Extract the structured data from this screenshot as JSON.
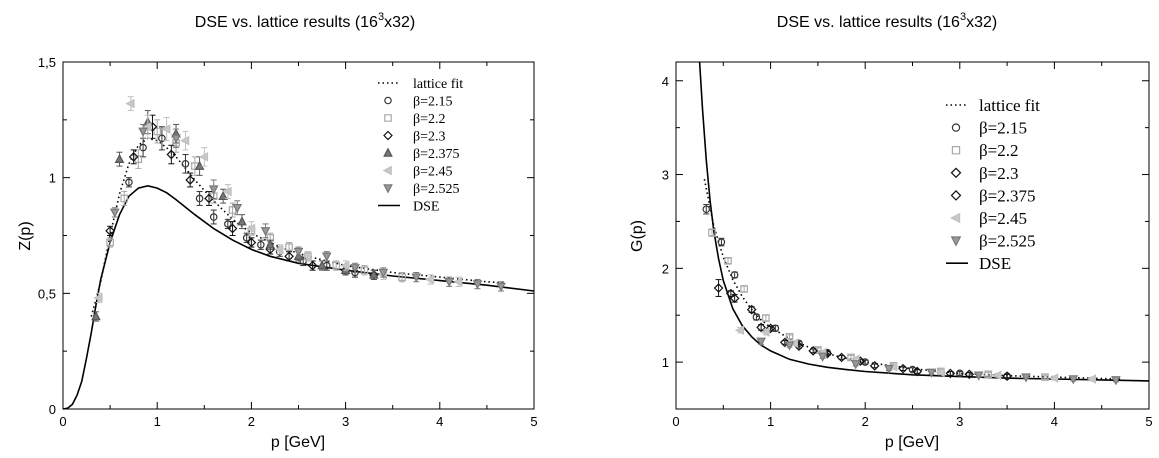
{
  "chart_data": [
    {
      "type": "scatter",
      "title": "DSE vs. lattice results (16",
      "title_sup": "3",
      "title_tail": "x32)",
      "xlabel": "p [GeV]",
      "ylabel": "Z(p)",
      "xlim": [
        0,
        5
      ],
      "ylim": [
        0,
        1.5
      ],
      "xticks": [
        {
          "v": 0,
          "label": "0"
        },
        {
          "v": 1,
          "label": "1"
        },
        {
          "v": 2,
          "label": "2"
        },
        {
          "v": 3,
          "label": "3"
        },
        {
          "v": 4,
          "label": "4"
        },
        {
          "v": 5,
          "label": "5"
        }
      ],
      "yticks": [
        {
          "v": 0,
          "label": "0"
        },
        {
          "v": 0.5,
          "label": "0,5"
        },
        {
          "v": 1,
          "label": "1"
        },
        {
          "v": 1.5,
          "label": "1,5"
        }
      ],
      "legend_position": "top-right",
      "legend": [
        {
          "label": "lattice fit",
          "kind": "dotted"
        },
        {
          "label": "β=2.15",
          "kind": "circle"
        },
        {
          "label": "β=2.2",
          "kind": "square"
        },
        {
          "label": "β=2.3",
          "kind": "diamond"
        },
        {
          "label": "β=2.375",
          "kind": "triangle-up"
        },
        {
          "label": "β=2.45",
          "kind": "triangle-left"
        },
        {
          "label": "β=2.525",
          "kind": "triangle-down"
        },
        {
          "label": "DSE",
          "kind": "solid"
        }
      ],
      "lattice_fit": {
        "x": [
          0.3,
          0.4,
          0.5,
          0.6,
          0.7,
          0.8,
          0.9,
          1.0,
          1.1,
          1.2,
          1.4,
          1.6,
          1.8,
          2.0,
          2.3,
          2.6,
          3.0,
          3.5,
          4.0,
          4.5,
          4.7
        ],
        "y": [
          0.4,
          0.55,
          0.75,
          0.93,
          1.06,
          1.14,
          1.17,
          1.16,
          1.13,
          1.09,
          0.99,
          0.9,
          0.82,
          0.76,
          0.7,
          0.66,
          0.62,
          0.59,
          0.57,
          0.55,
          0.545
        ]
      },
      "dse": {
        "x": [
          0.0,
          0.05,
          0.1,
          0.15,
          0.2,
          0.25,
          0.3,
          0.35,
          0.4,
          0.5,
          0.6,
          0.7,
          0.8,
          0.9,
          1.0,
          1.1,
          1.2,
          1.4,
          1.6,
          1.8,
          2.0,
          2.2,
          2.5,
          3.0,
          3.5,
          4.0,
          4.5,
          5.0
        ],
        "y": [
          0.0,
          0.004,
          0.02,
          0.06,
          0.12,
          0.22,
          0.33,
          0.45,
          0.56,
          0.72,
          0.84,
          0.92,
          0.955,
          0.965,
          0.955,
          0.935,
          0.905,
          0.84,
          0.78,
          0.73,
          0.69,
          0.66,
          0.63,
          0.6,
          0.575,
          0.555,
          0.535,
          0.51
        ]
      },
      "series": [
        {
          "marker": "circle",
          "x": [
            0.7,
            0.85,
            1.05,
            1.3,
            1.45,
            1.6,
            1.75,
            1.95,
            2.1,
            2.3,
            2.55,
            2.8,
            3.1
          ],
          "y": [
            0.98,
            1.13,
            1.17,
            1.06,
            0.91,
            0.83,
            0.8,
            0.74,
            0.71,
            0.68,
            0.64,
            0.62,
            0.59
          ],
          "err": [
            0.02,
            0.04,
            0.05,
            0.04,
            0.03,
            0.03,
            0.02,
            0.02,
            0.02,
            0.02,
            0.02,
            0.02,
            0.02
          ]
        },
        {
          "marker": "square",
          "x": [
            0.5,
            0.65,
            0.8,
            1.0,
            1.2,
            1.4,
            1.6,
            1.8,
            2.0,
            2.2,
            2.4,
            2.6,
            2.9,
            3.2,
            3.6
          ],
          "y": [
            0.72,
            0.91,
            1.08,
            1.2,
            1.15,
            1.05,
            0.92,
            0.86,
            0.77,
            0.74,
            0.7,
            0.66,
            0.62,
            0.6,
            0.57
          ],
          "err": [
            0.02,
            0.03,
            0.04,
            0.05,
            0.04,
            0.04,
            0.03,
            0.03,
            0.02,
            0.02,
            0.02,
            0.02,
            0.02,
            0.02,
            0.02
          ]
        },
        {
          "marker": "diamond",
          "x": [
            0.5,
            0.75,
            0.95,
            1.15,
            1.35,
            1.55,
            1.8,
            2.0,
            2.2,
            2.4,
            2.65,
            3.0,
            3.3
          ],
          "y": [
            0.77,
            1.09,
            1.22,
            1.1,
            0.99,
            0.91,
            0.78,
            0.72,
            0.69,
            0.66,
            0.62,
            0.6,
            0.58
          ],
          "err": [
            0.02,
            0.03,
            0.05,
            0.04,
            0.03,
            0.03,
            0.03,
            0.02,
            0.02,
            0.02,
            0.02,
            0.02,
            0.02
          ]
        },
        {
          "marker": "triangle-up",
          "x": [
            0.35,
            0.6,
            0.9,
            1.2,
            1.45,
            1.7,
            1.9,
            2.2,
            2.5,
            2.75,
            3.0,
            3.3
          ],
          "y": [
            0.4,
            1.08,
            1.24,
            1.19,
            1.05,
            0.92,
            0.81,
            0.71,
            0.66,
            0.62,
            0.6,
            0.58
          ],
          "err": [
            0.02,
            0.03,
            0.05,
            0.04,
            0.04,
            0.03,
            0.03,
            0.02,
            0.02,
            0.02,
            0.02,
            0.02
          ]
        },
        {
          "marker": "triangle-left",
          "x": [
            0.38,
            0.72,
            0.9,
            1.1,
            1.3,
            1.5,
            1.75,
            2.0,
            2.3,
            2.6,
            3.0,
            3.4,
            3.9,
            4.2
          ],
          "y": [
            0.48,
            1.32,
            1.22,
            1.21,
            1.16,
            1.09,
            0.94,
            0.78,
            0.69,
            0.66,
            0.62,
            0.58,
            0.56,
            0.55
          ],
          "err": [
            0.02,
            0.03,
            0.05,
            0.05,
            0.04,
            0.04,
            0.03,
            0.03,
            0.02,
            0.02,
            0.02,
            0.02,
            0.02,
            0.02
          ]
        },
        {
          "marker": "triangle-down",
          "x": [
            0.55,
            0.85,
            1.2,
            1.6,
            1.85,
            2.15,
            2.5,
            2.8,
            3.1,
            3.4,
            3.75,
            4.1,
            4.4,
            4.65
          ],
          "y": [
            0.85,
            1.2,
            1.17,
            0.95,
            0.87,
            0.77,
            0.68,
            0.66,
            0.61,
            0.59,
            0.57,
            0.55,
            0.54,
            0.53
          ],
          "err": [
            0.02,
            0.03,
            0.04,
            0.04,
            0.03,
            0.03,
            0.02,
            0.02,
            0.02,
            0.02,
            0.02,
            0.02,
            0.02,
            0.02
          ]
        }
      ]
    },
    {
      "type": "scatter",
      "title": "DSE vs. lattice results (16",
      "title_sup": "3",
      "title_tail": "x32)",
      "xlabel": "p [GeV]",
      "ylabel": "G(p)",
      "xlim": [
        0,
        5
      ],
      "ylim": [
        0.5,
        4.2
      ],
      "xticks": [
        {
          "v": 0,
          "label": "0"
        },
        {
          "v": 1,
          "label": "1"
        },
        {
          "v": 2,
          "label": "2"
        },
        {
          "v": 3,
          "label": "3"
        },
        {
          "v": 4,
          "label": "4"
        },
        {
          "v": 5,
          "label": "5"
        }
      ],
      "yticks": [
        {
          "v": 1,
          "label": "1"
        },
        {
          "v": 2,
          "label": "2"
        },
        {
          "v": 3,
          "label": "3"
        },
        {
          "v": 4,
          "label": "4"
        }
      ],
      "legend_position": "right",
      "legend": [
        {
          "label": "lattice fit",
          "kind": "dotted"
        },
        {
          "label": "β=2.15",
          "kind": "circle"
        },
        {
          "label": "β=2.2",
          "kind": "square"
        },
        {
          "label": "β=2.3",
          "kind": "diamond"
        },
        {
          "label": "β=2.375",
          "kind": "diamond"
        },
        {
          "label": "β=2.45",
          "kind": "triangle-left"
        },
        {
          "label": "β=2.525",
          "kind": "triangle-down"
        },
        {
          "label": "DSE",
          "kind": "solid"
        }
      ],
      "lattice_fit": {
        "x": [
          0.3,
          0.4,
          0.5,
          0.6,
          0.7,
          0.8,
          0.9,
          1.0,
          1.2,
          1.4,
          1.6,
          1.8,
          2.0,
          2.5,
          3.0,
          3.5,
          4.0,
          4.5,
          4.7
        ],
        "y": [
          2.95,
          2.45,
          2.12,
          1.88,
          1.7,
          1.56,
          1.45,
          1.37,
          1.25,
          1.16,
          1.09,
          1.04,
          1.0,
          0.93,
          0.88,
          0.855,
          0.84,
          0.825,
          0.82
        ]
      },
      "dse": {
        "x": [
          0.25,
          0.28,
          0.32,
          0.36,
          0.4,
          0.45,
          0.5,
          0.6,
          0.7,
          0.8,
          0.9,
          1.0,
          1.2,
          1.4,
          1.6,
          1.8,
          2.0,
          2.5,
          3.0,
          3.5,
          4.0,
          4.5,
          5.0
        ],
        "y": [
          4.2,
          3.7,
          3.15,
          2.72,
          2.4,
          2.1,
          1.87,
          1.57,
          1.39,
          1.27,
          1.18,
          1.12,
          1.03,
          0.98,
          0.945,
          0.92,
          0.9,
          0.865,
          0.845,
          0.83,
          0.82,
          0.81,
          0.8
        ]
      },
      "series": [
        {
          "marker": "circle",
          "x": [
            0.32,
            0.48,
            0.62,
            0.85,
            1.05,
            1.3,
            1.6,
            2.0,
            2.5,
            3.0,
            3.5
          ],
          "y": [
            2.63,
            2.28,
            1.93,
            1.48,
            1.36,
            1.2,
            1.1,
            1.0,
            0.92,
            0.88,
            0.85
          ],
          "err": [
            0.05,
            0.04,
            0.03,
            0.03,
            0.03,
            0.02,
            0.02,
            0.02,
            0.02,
            0.02,
            0.02
          ]
        },
        {
          "marker": "square",
          "x": [
            0.38,
            0.55,
            0.72,
            0.95,
            1.2,
            1.5,
            1.85,
            2.3,
            2.8,
            3.3,
            3.9
          ],
          "y": [
            2.38,
            2.08,
            1.78,
            1.47,
            1.27,
            1.13,
            1.05,
            0.96,
            0.9,
            0.87,
            0.84
          ],
          "err": [
            0.04,
            0.03,
            0.03,
            0.03,
            0.02,
            0.02,
            0.02,
            0.02,
            0.02,
            0.02,
            0.02
          ]
        },
        {
          "marker": "diamond",
          "x": [
            0.45,
            0.62,
            0.9,
            1.15,
            1.45,
            1.75,
            2.1,
            2.55,
            3.1
          ],
          "y": [
            1.79,
            1.68,
            1.37,
            1.21,
            1.12,
            1.05,
            0.96,
            0.9,
            0.87
          ],
          "err": [
            0.09,
            0.04,
            0.03,
            0.02,
            0.02,
            0.02,
            0.02,
            0.02,
            0.02
          ]
        },
        {
          "marker": "diamond",
          "x": [
            0.58,
            0.8,
            1.0,
            1.3,
            1.6,
            1.95,
            2.4,
            2.9,
            3.5
          ],
          "y": [
            1.73,
            1.56,
            1.36,
            1.17,
            1.09,
            1.01,
            0.93,
            0.88,
            0.85
          ],
          "err": [
            0.03,
            0.03,
            0.02,
            0.02,
            0.02,
            0.02,
            0.02,
            0.02,
            0.02
          ]
        },
        {
          "marker": "triangle-left",
          "x": [
            0.68,
            0.95,
            1.25,
            1.55,
            1.9,
            2.3,
            2.8,
            3.4,
            4.0,
            4.4
          ],
          "y": [
            1.34,
            1.32,
            1.2,
            1.1,
            1.03,
            0.95,
            0.89,
            0.86,
            0.83,
            0.82
          ],
          "err": [
            0.03,
            0.03,
            0.02,
            0.02,
            0.02,
            0.02,
            0.02,
            0.02,
            0.02,
            0.02
          ]
        },
        {
          "marker": "triangle-down",
          "x": [
            0.9,
            1.2,
            1.55,
            1.9,
            2.25,
            2.7,
            3.2,
            3.7,
            4.2,
            4.65
          ],
          "y": [
            1.22,
            1.18,
            1.06,
            0.98,
            0.93,
            0.89,
            0.86,
            0.84,
            0.82,
            0.81
          ],
          "err": [
            0.03,
            0.02,
            0.02,
            0.02,
            0.02,
            0.02,
            0.02,
            0.02,
            0.02,
            0.02
          ]
        }
      ]
    }
  ]
}
